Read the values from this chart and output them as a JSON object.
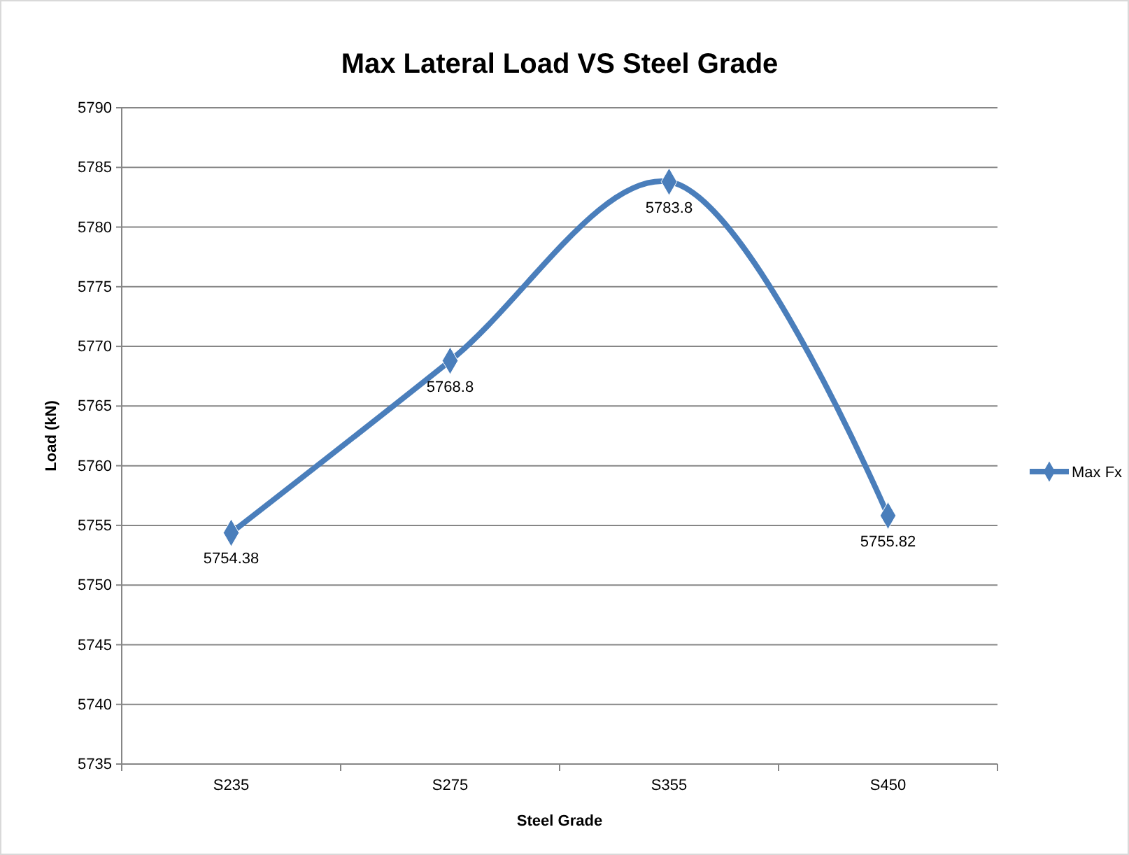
{
  "chart_data": {
    "type": "line",
    "title": "Max Lateral Load VS Steel Grade",
    "xlabel": "Steel Grade",
    "ylabel": "Load (kN)",
    "categories": [
      "S235",
      "S275",
      "S355",
      "S450"
    ],
    "series": [
      {
        "name": "Max Fx",
        "color": "#4a7ebb",
        "values": [
          5754.38,
          5768.8,
          5783.8,
          5755.82
        ]
      }
    ],
    "ylim": [
      5735,
      5790
    ],
    "yticks": [
      5735,
      5740,
      5745,
      5750,
      5755,
      5760,
      5765,
      5770,
      5775,
      5780,
      5785,
      5790
    ],
    "grid": "y",
    "legend": "right",
    "marker": "diamond",
    "data_labels": true
  }
}
